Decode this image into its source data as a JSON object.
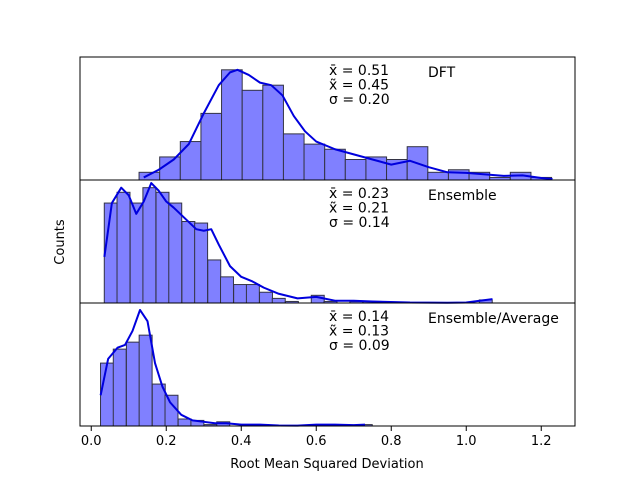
{
  "chart_data": {
    "type": "bar",
    "xlabel": "Root Mean Squared Deviation",
    "ylabel": "Counts",
    "xlim": [
      -0.03,
      1.29
    ],
    "xticks": [
      0.0,
      0.2,
      0.4,
      0.6,
      0.8,
      1.0,
      1.2
    ],
    "xtick_labels": [
      "0.0",
      "0.2",
      "0.4",
      "0.6",
      "0.8",
      "1.0",
      "1.2"
    ],
    "panels": [
      {
        "name": "DFT",
        "label": "DFT",
        "bin_width": 0.055,
        "bars": [
          {
            "x": 0.155,
            "count": 3
          },
          {
            "x": 0.21,
            "count": 9
          },
          {
            "x": 0.265,
            "count": 15
          },
          {
            "x": 0.32,
            "count": 26
          },
          {
            "x": 0.375,
            "count": 43
          },
          {
            "x": 0.43,
            "count": 35
          },
          {
            "x": 0.485,
            "count": 37
          },
          {
            "x": 0.54,
            "count": 18
          },
          {
            "x": 0.595,
            "count": 14
          },
          {
            "x": 0.65,
            "count": 12
          },
          {
            "x": 0.705,
            "count": 8
          },
          {
            "x": 0.76,
            "count": 9
          },
          {
            "x": 0.815,
            "count": 8
          },
          {
            "x": 0.87,
            "count": 13
          },
          {
            "x": 0.925,
            "count": 3
          },
          {
            "x": 0.98,
            "count": 4
          },
          {
            "x": 1.035,
            "count": 3
          },
          {
            "x": 1.09,
            "count": 1
          },
          {
            "x": 1.145,
            "count": 3
          },
          {
            "x": 1.2,
            "count": 1
          }
        ],
        "kde": [
          [
            0.14,
            1
          ],
          [
            0.18,
            4
          ],
          [
            0.22,
            8
          ],
          [
            0.26,
            14
          ],
          [
            0.3,
            26
          ],
          [
            0.34,
            37
          ],
          [
            0.37,
            42
          ],
          [
            0.39,
            43
          ],
          [
            0.42,
            41
          ],
          [
            0.45,
            38
          ],
          [
            0.48,
            37
          ],
          [
            0.51,
            33
          ],
          [
            0.54,
            25
          ],
          [
            0.57,
            19
          ],
          [
            0.6,
            15
          ],
          [
            0.65,
            12
          ],
          [
            0.7,
            10
          ],
          [
            0.75,
            8
          ],
          [
            0.8,
            6
          ],
          [
            0.85,
            7.5
          ],
          [
            0.9,
            5
          ],
          [
            0.95,
            3
          ],
          [
            1.0,
            2.8
          ],
          [
            1.05,
            2.2
          ],
          [
            1.1,
            1.6
          ],
          [
            1.15,
            1.8
          ],
          [
            1.2,
            0.8
          ],
          [
            1.23,
            0.4
          ]
        ],
        "ymax": 48,
        "stats": {
          "mean": "0.51",
          "median": "0.45",
          "std": "0.20"
        }
      },
      {
        "name": "Ensemble",
        "label": "Ensemble",
        "bin_width": 0.0345,
        "bars": [
          {
            "x": 0.052,
            "count": 65
          },
          {
            "x": 0.086,
            "count": 72
          },
          {
            "x": 0.121,
            "count": 65
          },
          {
            "x": 0.155,
            "count": 75
          },
          {
            "x": 0.19,
            "count": 72
          },
          {
            "x": 0.224,
            "count": 65
          },
          {
            "x": 0.259,
            "count": 53
          },
          {
            "x": 0.293,
            "count": 52
          },
          {
            "x": 0.328,
            "count": 28
          },
          {
            "x": 0.362,
            "count": 17
          },
          {
            "x": 0.397,
            "count": 12
          },
          {
            "x": 0.431,
            "count": 12
          },
          {
            "x": 0.466,
            "count": 7
          },
          {
            "x": 0.5,
            "count": 3
          },
          {
            "x": 0.535,
            "count": 1
          },
          {
            "x": 0.604,
            "count": 5
          },
          {
            "x": 0.638,
            "count": 1
          },
          {
            "x": 0.707,
            "count": 1
          },
          {
            "x": 0.742,
            "count": 1
          },
          {
            "x": 1.052,
            "count": 2
          }
        ],
        "kde": [
          [
            0.035,
            30
          ],
          [
            0.055,
            65
          ],
          [
            0.08,
            75
          ],
          [
            0.1,
            70
          ],
          [
            0.12,
            58
          ],
          [
            0.14,
            66
          ],
          [
            0.16,
            78
          ],
          [
            0.18,
            73
          ],
          [
            0.2,
            66
          ],
          [
            0.22,
            62
          ],
          [
            0.25,
            55
          ],
          [
            0.28,
            48
          ],
          [
            0.3,
            47
          ],
          [
            0.32,
            48
          ],
          [
            0.34,
            38
          ],
          [
            0.37,
            24
          ],
          [
            0.4,
            17
          ],
          [
            0.43,
            14
          ],
          [
            0.46,
            10
          ],
          [
            0.5,
            6
          ],
          [
            0.55,
            3
          ],
          [
            0.6,
            4
          ],
          [
            0.65,
            1.5
          ],
          [
            0.7,
            1.5
          ],
          [
            0.75,
            1
          ],
          [
            0.85,
            0.3
          ],
          [
            0.95,
            0.2
          ],
          [
            1.0,
            0.3
          ],
          [
            1.07,
            2.5
          ]
        ],
        "ymax": 80,
        "stats": {
          "mean": "0.23",
          "median": "0.21",
          "std": "0.14"
        }
      },
      {
        "name": "Ensemble/Average",
        "label": "Ensemble/Average",
        "bin_width": 0.0345,
        "bars": [
          {
            "x": 0.042,
            "count": 45
          },
          {
            "x": 0.076,
            "count": 55
          },
          {
            "x": 0.111,
            "count": 60
          },
          {
            "x": 0.145,
            "count": 65
          },
          {
            "x": 0.18,
            "count": 30
          },
          {
            "x": 0.214,
            "count": 22
          },
          {
            "x": 0.249,
            "count": 5
          },
          {
            "x": 0.283,
            "count": 4
          },
          {
            "x": 0.318,
            "count": 1
          },
          {
            "x": 0.352,
            "count": 3
          },
          {
            "x": 0.456,
            "count": 1
          },
          {
            "x": 0.628,
            "count": 1
          },
          {
            "x": 0.732,
            "count": 1
          }
        ],
        "kde": [
          [
            0.025,
            22
          ],
          [
            0.045,
            48
          ],
          [
            0.07,
            56
          ],
          [
            0.09,
            58
          ],
          [
            0.11,
            68
          ],
          [
            0.13,
            83
          ],
          [
            0.15,
            75
          ],
          [
            0.17,
            45
          ],
          [
            0.19,
            28
          ],
          [
            0.21,
            17
          ],
          [
            0.24,
            8
          ],
          [
            0.27,
            4
          ],
          [
            0.3,
            3
          ],
          [
            0.33,
            2
          ],
          [
            0.36,
            2
          ],
          [
            0.4,
            1
          ],
          [
            0.45,
            1
          ],
          [
            0.5,
            0.4
          ],
          [
            0.55,
            0.3
          ],
          [
            0.6,
            1
          ],
          [
            0.65,
            1
          ],
          [
            0.7,
            0.6
          ],
          [
            0.73,
            1
          ]
        ],
        "ymax": 88,
        "stats": {
          "mean": "0.14",
          "median": "0.13",
          "std": "0.09"
        }
      }
    ],
    "stat_symbols": {
      "mean": "x̄ =",
      "median": "x̃ =",
      "std": "σ ="
    },
    "colors": {
      "bar_fill": "#8080ff",
      "bar_edge": "#333344",
      "kde_line": "#0000dd",
      "axis": "#000000"
    }
  }
}
